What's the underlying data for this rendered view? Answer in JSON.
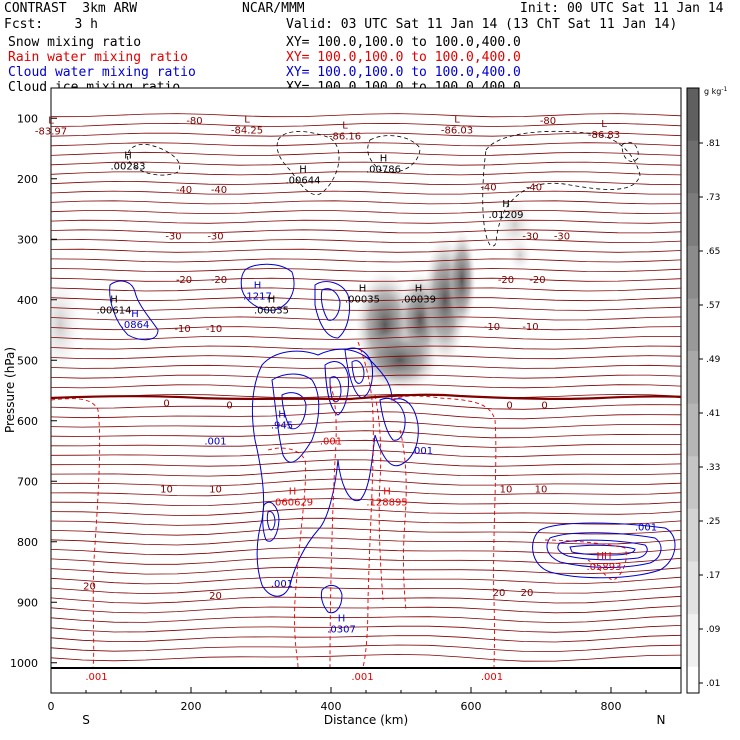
{
  "header": {
    "model": "CONTRAST  3km ARW",
    "org": "NCAR/MMM",
    "init": "Init: 00 UTC Sat 11 Jan 14",
    "fcst": "Fcst:    3 h",
    "valid": "Valid: 03 UTC Sat 11 Jan 14 (13 ChT Sat 11 Jan 14)"
  },
  "fields": [
    {
      "name": "Snow mixing ratio",
      "xy": "XY= 100.0,100.0 to 100.0,400.0",
      "color": "#000000"
    },
    {
      "name": "Rain water mixing ratio",
      "xy": "XY= 100.0,100.0 to 100.0,400.0",
      "color": "#e00000"
    },
    {
      "name": "Cloud water mixing ratio",
      "xy": "XY= 100.0,100.0 to 100.0,400.0",
      "color": "#0000d0"
    },
    {
      "name": "Cloud ice mixing ratio",
      "xy": "XY= 100.0,100.0 to 100.0,400.0",
      "color": "#000000"
    }
  ],
  "chart_data": {
    "type": "cross-section contour",
    "xlabel": "Distance (km)",
    "ylabel": "Pressure (hPa)",
    "xlim": [
      0,
      900
    ],
    "ylim": [
      1050,
      50
    ],
    "xticks": [
      0,
      200,
      400,
      600,
      800
    ],
    "yticks": [
      100,
      200,
      300,
      400,
      500,
      600,
      700,
      800,
      900,
      1000
    ],
    "end_labels": {
      "left": "S",
      "right": "N"
    },
    "colorbar": {
      "unit": "g kg",
      "unit_exp": "-1",
      "ticks": [
        ".81",
        ".73",
        ".65",
        ".57",
        ".49",
        ".41",
        ".33",
        ".25",
        ".17",
        ".09",
        ".01"
      ]
    },
    "temperature_labels": [
      {
        "t": "-80",
        "x": 205,
        "p": 103
      },
      {
        "t": "-80",
        "x": 710,
        "p": 103
      },
      {
        "t": "-40",
        "x": 190,
        "p": 217
      },
      {
        "t": "-40",
        "x": 240,
        "p": 217
      },
      {
        "t": "-40",
        "x": 625,
        "p": 213
      },
      {
        "t": "-40",
        "x": 690,
        "p": 213
      },
      {
        "t": "-30",
        "x": 175,
        "p": 294
      },
      {
        "t": "-30",
        "x": 235,
        "p": 294
      },
      {
        "t": "-30",
        "x": 685,
        "p": 294
      },
      {
        "t": "-30",
        "x": 730,
        "p": 294
      },
      {
        "t": "-20",
        "x": 190,
        "p": 366
      },
      {
        "t": "-20",
        "x": 240,
        "p": 366
      },
      {
        "t": "-20",
        "x": 650,
        "p": 366
      },
      {
        "t": "-20",
        "x": 695,
        "p": 366
      },
      {
        "t": "-10",
        "x": 188,
        "p": 447
      },
      {
        "t": "-10",
        "x": 233,
        "p": 447
      },
      {
        "t": "-10",
        "x": 630,
        "p": 443
      },
      {
        "t": "-10",
        "x": 685,
        "p": 443
      },
      {
        "t": "0",
        "x": 165,
        "p": 570
      },
      {
        "t": "0",
        "x": 255,
        "p": 573
      },
      {
        "t": "0",
        "x": 655,
        "p": 573
      },
      {
        "t": "0",
        "x": 705,
        "p": 573
      },
      {
        "t": "10",
        "x": 165,
        "p": 712
      },
      {
        "t": "10",
        "x": 235,
        "p": 712
      },
      {
        "t": "10",
        "x": 650,
        "p": 712
      },
      {
        "t": "10",
        "x": 700,
        "p": 712
      },
      {
        "t": "20",
        "x": 55,
        "p": 872
      },
      {
        "t": "20",
        "x": 235,
        "p": 888
      },
      {
        "t": "20",
        "x": 640,
        "p": 883
      },
      {
        "t": "20",
        "x": 680,
        "p": 883
      }
    ],
    "extrema": [
      {
        "kind": "L",
        "value": "-83.97",
        "x": 0,
        "p": 112,
        "color": "#800000"
      },
      {
        "kind": "L",
        "value": "-84.25",
        "x": 280,
        "p": 110,
        "color": "#800000"
      },
      {
        "kind": "L",
        "value": "-86.16",
        "x": 420,
        "p": 120,
        "color": "#800000"
      },
      {
        "kind": "L",
        "value": "-86.03",
        "x": 580,
        "p": 110,
        "color": "#800000"
      },
      {
        "kind": "L",
        "value": "-86.83",
        "x": 790,
        "p": 118,
        "color": "#800000"
      },
      {
        "kind": "H",
        "value": ".00283",
        "x": 110,
        "p": 170,
        "color": "#000000"
      },
      {
        "kind": "H",
        "value": ".00644",
        "x": 360,
        "p": 193,
        "color": "#000000"
      },
      {
        "kind": "H",
        "value": ".00786",
        "x": 475,
        "p": 175,
        "color": "#000000"
      },
      {
        "kind": "H",
        "value": ".01209",
        "x": 650,
        "p": 250,
        "color": "#000000"
      },
      {
        "kind": "H",
        "value": ".00614",
        "x": 90,
        "p": 408,
        "color": "#000000"
      },
      {
        "kind": "H",
        "value": ".0864",
        "x": 120,
        "p": 432,
        "color": "#0000d0"
      },
      {
        "kind": "H",
        "value": ".1217",
        "x": 295,
        "p": 385,
        "color": "#0000d0"
      },
      {
        "kind": "H",
        "value": ".00035",
        "x": 315,
        "p": 408,
        "color": "#000000"
      },
      {
        "kind": "H",
        "value": ".00035",
        "x": 445,
        "p": 390,
        "color": "#000000"
      },
      {
        "kind": "H",
        "value": ".00039",
        "x": 525,
        "p": 390,
        "color": "#000000"
      },
      {
        "kind": "H",
        "value": ".945",
        "x": 330,
        "p": 598,
        "color": "#0000d0"
      },
      {
        "kind": "H",
        "value": ".060629",
        "x": 345,
        "p": 725,
        "color": "#e00000"
      },
      {
        "kind": "H",
        "value": ".128895",
        "x": 480,
        "p": 725,
        "color": "#e00000"
      },
      {
        "kind": "H",
        "value": ".0307",
        "x": 415,
        "p": 935,
        "color": "#0000d0"
      },
      {
        "kind": "HH",
        "value": ".05893",
        "x": 790,
        "p": 832,
        "color": "#e00000"
      }
    ],
    "contour_labels": [
      {
        "v": ".001",
        "x": 235,
        "p": 633,
        "color": "#0000d0"
      },
      {
        "v": ".001",
        "x": 530,
        "p": 648,
        "color": "#0000d0"
      },
      {
        "v": ".001",
        "x": 330,
        "p": 868,
        "color": "#0000d0"
      },
      {
        "v": ".001",
        "x": 850,
        "p": 775,
        "color": "#0000d0"
      },
      {
        "v": ".001",
        "x": 400,
        "p": 633,
        "color": "#e00000"
      },
      {
        "v": ".001",
        "x": 65,
        "p": 1022,
        "color": "#e00000"
      },
      {
        "v": ".001",
        "x": 445,
        "p": 1022,
        "color": "#e00000"
      },
      {
        "v": ".001",
        "x": 630,
        "p": 1022,
        "color": "#e00000"
      }
    ]
  }
}
